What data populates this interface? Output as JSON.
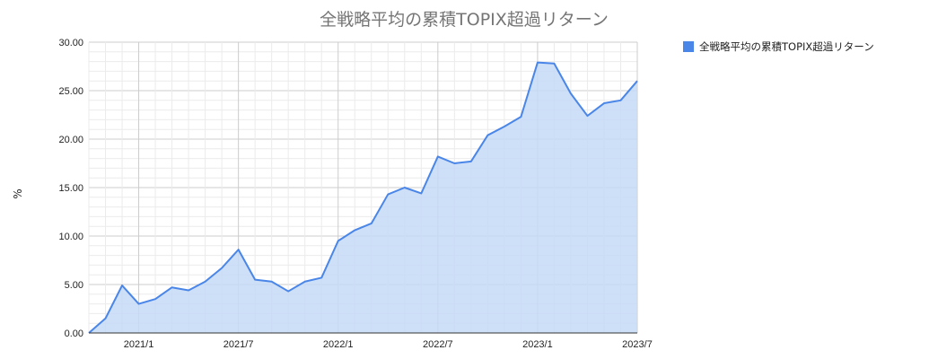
{
  "chart_data": {
    "type": "area",
    "title": "全戦略平均の累積TOPIX超過リターン",
    "xlabel": "",
    "ylabel": "%",
    "ylim": [
      0,
      30
    ],
    "yticks": [
      "0.00",
      "5.00",
      "10.00",
      "15.00",
      "20.00",
      "25.00",
      "30.00"
    ],
    "xticks": [
      "2021/1",
      "2021/7",
      "2022/1",
      "2022/7",
      "2023/1",
      "2023/7"
    ],
    "grid": true,
    "legend_position": "right",
    "colors": {
      "line": "#4a86e8",
      "fill": "#c6d9f7"
    },
    "series": [
      {
        "name": "全戦略平均の累積TOPIX超過リターン",
        "x": [
          "2020/10",
          "2020/11",
          "2020/12",
          "2021/1",
          "2021/2",
          "2021/3",
          "2021/4",
          "2021/5",
          "2021/6",
          "2021/7",
          "2021/8",
          "2021/9",
          "2021/10",
          "2021/11",
          "2021/12",
          "2022/1",
          "2022/2",
          "2022/3",
          "2022/4",
          "2022/5",
          "2022/6",
          "2022/7",
          "2022/8",
          "2022/9",
          "2022/10",
          "2022/11",
          "2022/12",
          "2023/1",
          "2023/2",
          "2023/3",
          "2023/4",
          "2023/5",
          "2023/6",
          "2023/7"
        ],
        "values": [
          0.0,
          1.5,
          4.9,
          3.0,
          3.5,
          4.7,
          4.4,
          5.3,
          6.7,
          8.6,
          5.5,
          5.3,
          4.3,
          5.3,
          5.7,
          9.5,
          10.6,
          11.3,
          14.3,
          15.0,
          14.4,
          18.2,
          17.5,
          17.7,
          20.4,
          21.3,
          22.3,
          27.9,
          27.8,
          24.7,
          22.4,
          23.7,
          24.0,
          26.0
        ]
      }
    ]
  }
}
